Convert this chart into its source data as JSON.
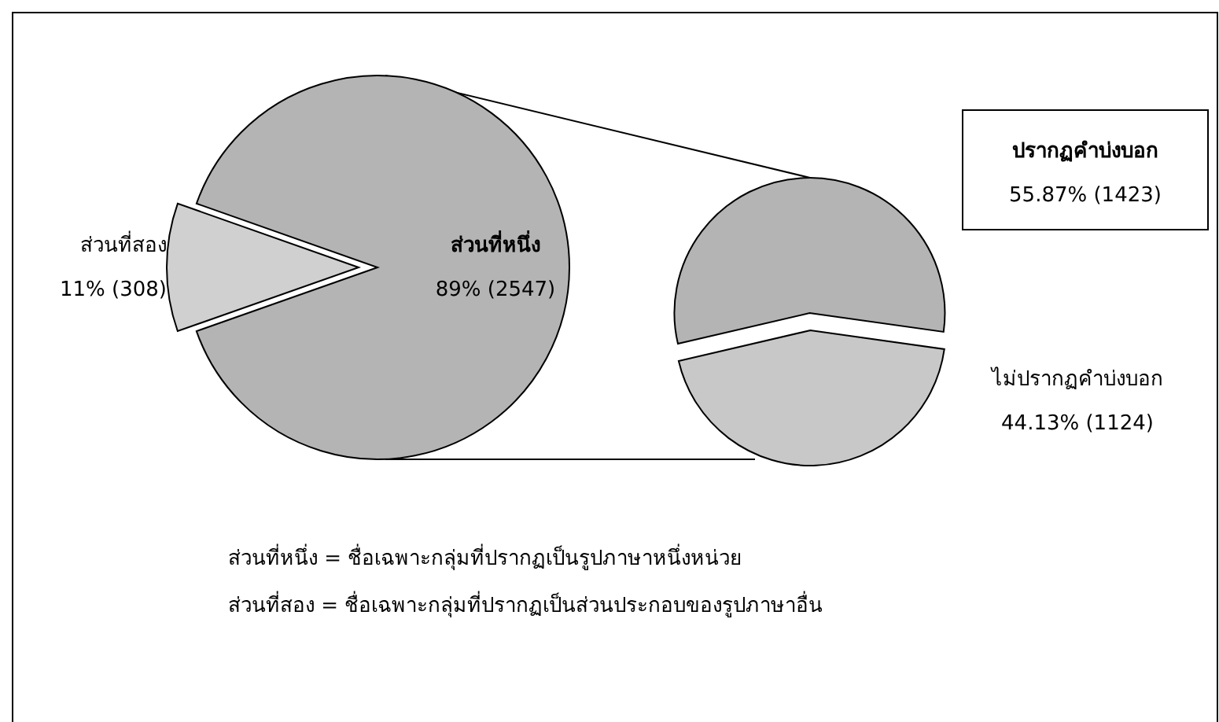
{
  "chart_data": [
    {
      "type": "pie",
      "categories": [
        "ส่วนที่หนึ่ง",
        "ส่วนที่สอง"
      ],
      "values": [
        2547,
        308
      ],
      "value_labels": [
        "89% (2547)",
        "11% (308)"
      ],
      "colors": [
        "#b4b4b4",
        "#d0d0d0"
      ],
      "annotations": [
        "ส่วนที่หนึ่ง = ชื่อเฉพาะกลุ่มที่ปรากฏเป็นรูปภาษาหนึ่งหน่วย",
        "ส่วนที่สอง = ชื่อเฉพาะกลุ่มที่ปรากฏเป็นส่วนประกอบของรูปภาษาอื่น"
      ]
    },
    {
      "type": "pie",
      "categories": [
        "ปรากฏคำบ่งบอก",
        "ไม่ปรากฏคำบ่งบอก"
      ],
      "values": [
        1423,
        1124
      ],
      "value_labels": [
        "55.87% (1423)",
        "44.13% (1124)"
      ],
      "colors": [
        "#b4b4b4",
        "#c8c8c8"
      ]
    }
  ]
}
